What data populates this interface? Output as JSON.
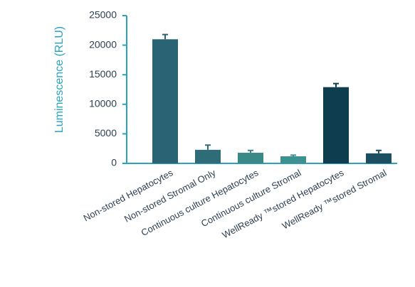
{
  "chart_data": {
    "type": "bar",
    "y_label": "Luminescence (RLU)",
    "categories": [
      "Non-stored Hepatocytes",
      "Non-stored Stromal Only",
      "Continuous culture Hepatocytes",
      "Continuous culture Stromal",
      "WellReady ™stored Hepatocytes",
      "WellReady ™stored Stromal"
    ],
    "values": [
      21000,
      2300,
      1800,
      1200,
      12900,
      1700
    ],
    "errors": [
      800,
      800,
      400,
      200,
      600,
      500
    ],
    "colors": [
      "#2a6474",
      "#2e6d78",
      "#3a8989",
      "#3d9191",
      "#0f3d50",
      "#1c4f60"
    ],
    "ylim": [
      0,
      25000
    ],
    "yticks": [
      0,
      5000,
      10000,
      15000,
      20000,
      25000
    ],
    "axis_color": "#2aa3bf"
  }
}
